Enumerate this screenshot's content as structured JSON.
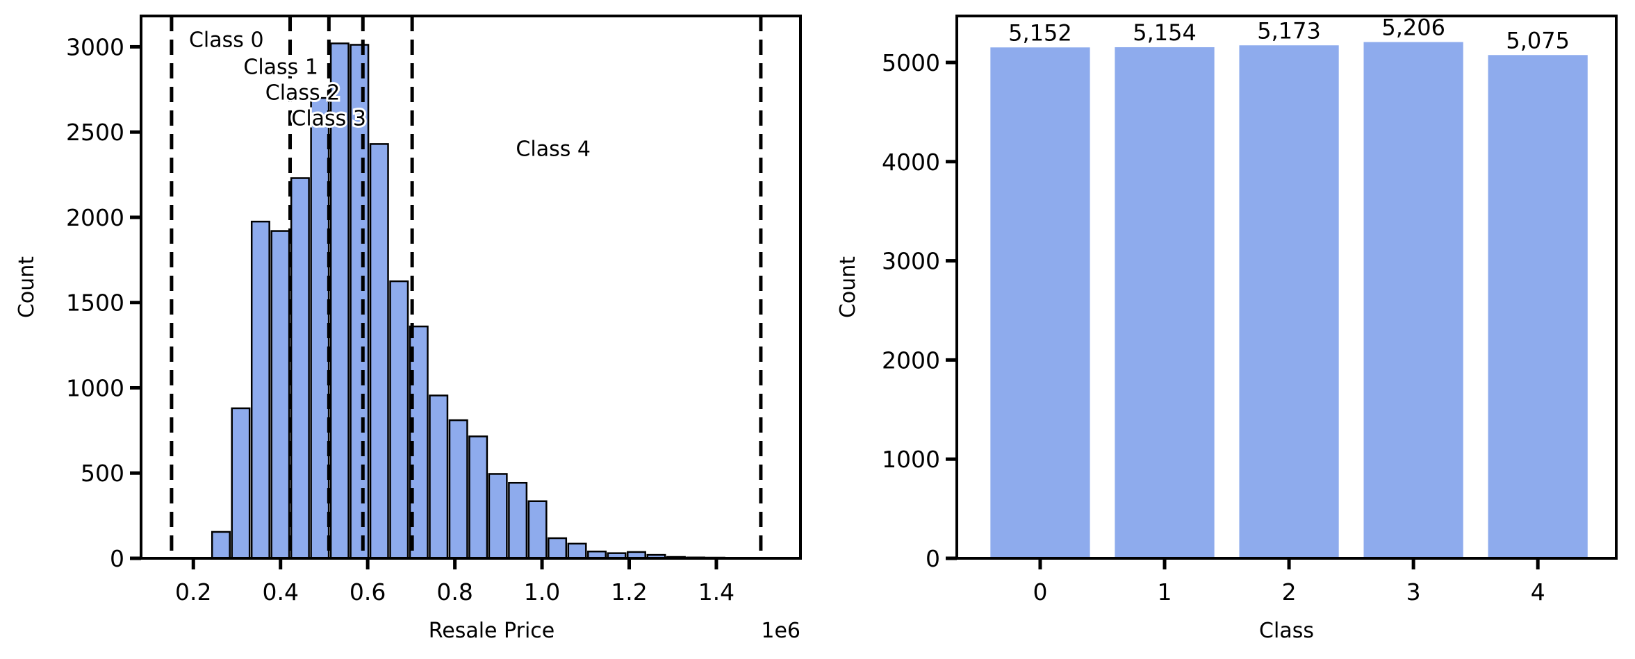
{
  "colors": {
    "bar": "#8eabed",
    "edge": "#000000",
    "dashed": "#000000"
  },
  "chart_data": [
    {
      "type": "bar",
      "subtype": "histogram",
      "title": "",
      "xlabel": "Resale Price",
      "ylabel": "Count",
      "x_offset_label": "1e6",
      "xlim": [
        0.08,
        1.593
      ],
      "ylim": [
        0,
        3181
      ],
      "xticks": [
        0.2,
        0.4,
        0.6,
        0.8,
        1.0,
        1.2,
        1.4
      ],
      "xtick_labels": [
        "0.2",
        "0.4",
        "0.6",
        "0.8",
        "1.0",
        "1.2",
        "1.4"
      ],
      "yticks": [
        0,
        500,
        1000,
        1500,
        2000,
        2500,
        3000
      ],
      "ytick_labels": [
        "0",
        "500",
        "1000",
        "1500",
        "2000",
        "2500",
        "3000"
      ],
      "bin_start": 0.243,
      "bin_width": 0.0454,
      "values": [
        155,
        880,
        1975,
        1920,
        2230,
        2700,
        3020,
        3012,
        2430,
        1625,
        1360,
        955,
        810,
        715,
        495,
        443,
        335,
        118,
        86,
        40,
        30,
        37,
        20,
        8,
        5,
        4,
        3
      ],
      "thresholds": [
        0.15,
        0.422,
        0.511,
        0.589,
        0.702,
        1.502
      ],
      "annotations": [
        {
          "text": "Class 0",
          "x": 0.19,
          "y": 3000
        },
        {
          "text": "Class 1",
          "x": 0.315,
          "y": 2840
        },
        {
          "text": "Class 2",
          "x": 0.365,
          "y": 2690
        },
        {
          "text": "Class 3",
          "x": 0.425,
          "y": 2540
        },
        {
          "text": "Class 4",
          "x": 0.94,
          "y": 2360
        }
      ],
      "grid": false
    },
    {
      "type": "bar",
      "title": "",
      "xlabel": "Class",
      "ylabel": "Count",
      "categories": [
        "0",
        "1",
        "2",
        "3",
        "4"
      ],
      "values": [
        5152,
        5154,
        5173,
        5206,
        5075
      ],
      "data_labels": [
        "5,152",
        "5,154",
        "5,173",
        "5,206",
        "5,075"
      ],
      "xlim": [
        -0.67,
        4.63
      ],
      "ylim": [
        0,
        5469
      ],
      "yticks": [
        0,
        1000,
        2000,
        3000,
        4000,
        5000
      ],
      "ytick_labels": [
        "0",
        "1000",
        "2000",
        "3000",
        "4000",
        "5000"
      ],
      "grid": false
    }
  ]
}
